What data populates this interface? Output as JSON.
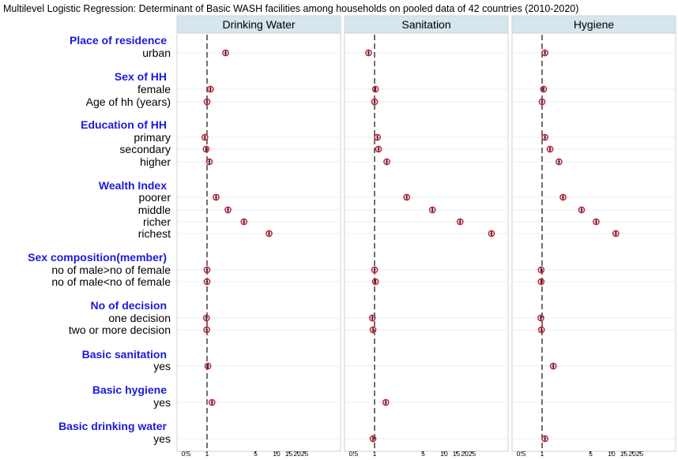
{
  "chart_data": {
    "type": "scatter",
    "title": "Multilevel Logistic Regression: Determinant of Basic WASH facilities among households on pooled data of 42 countries (2010-2020)",
    "x_scale": "log",
    "xlim": [
      0.38,
      38
    ],
    "reference_line": 1,
    "x_ticks": [
      "0.5",
      "1",
      "5",
      "10",
      "15",
      "2025"
    ],
    "panels": [
      "Drinking Water",
      "Sanitation",
      "Hygiene"
    ],
    "colors": {
      "panel_header_bg": "#d6e6ec",
      "panel_bg": "#ffffff",
      "row_line": "#e8eff4",
      "group_label": "#1a1adb",
      "point": "#d42020",
      "ci": "#1d2a6b",
      "reference_line": "#333333"
    },
    "rows": [
      {
        "type": "group",
        "label": "Place of residence"
      },
      {
        "type": "var",
        "label": "urban",
        "values": [
          1.85,
          0.82,
          1.1
        ]
      },
      {
        "type": "group",
        "label": "Sex of HH"
      },
      {
        "type": "var",
        "label": "female",
        "values": [
          1.12,
          1.03,
          1.05
        ]
      },
      {
        "type": "var",
        "label": "Age of hh (years)",
        "values": [
          1.0,
          1.0,
          1.0
        ]
      },
      {
        "type": "group",
        "label": "Education of HH"
      },
      {
        "type": "var",
        "label": "primary",
        "values": [
          0.93,
          1.1,
          1.1
        ]
      },
      {
        "type": "var",
        "label": "secondary",
        "values": [
          0.97,
          1.14,
          1.3
        ]
      },
      {
        "type": "var",
        "label": "higher",
        "values": [
          1.08,
          1.5,
          1.75
        ]
      },
      {
        "type": "group",
        "label": "Wealth Index"
      },
      {
        "type": "var",
        "label": "poorer",
        "values": [
          1.35,
          2.9,
          2.0
        ]
      },
      {
        "type": "var",
        "label": "middle",
        "values": [
          2.0,
          6.8,
          3.7
        ]
      },
      {
        "type": "var",
        "label": "richer",
        "values": [
          3.4,
          17.0,
          6.0
        ]
      },
      {
        "type": "var",
        "label": "richest",
        "values": [
          7.8,
          48.0,
          11.5
        ]
      },
      {
        "type": "group",
        "label": "Sex composition(member)"
      },
      {
        "type": "var",
        "label": "no of male>no of female",
        "values": [
          1.0,
          1.0,
          0.97
        ]
      },
      {
        "type": "var",
        "label": "no of male<no of female",
        "values": [
          1.0,
          1.03,
          0.97
        ]
      },
      {
        "type": "group",
        "label": "No of decision"
      },
      {
        "type": "var",
        "label": "one decision",
        "values": [
          0.98,
          0.93,
          0.96
        ]
      },
      {
        "type": "var",
        "label": "two or more decision",
        "values": [
          0.99,
          0.95,
          0.98
        ]
      },
      {
        "type": "group",
        "label": "Basic sanitation"
      },
      {
        "type": "var",
        "label": "yes",
        "values": [
          1.03,
          null,
          1.45
        ]
      },
      {
        "type": "group",
        "label": "Basic hygiene"
      },
      {
        "type": "var",
        "label": "yes",
        "values": [
          1.18,
          1.45,
          null
        ]
      },
      {
        "type": "group",
        "label": "Basic drinking water"
      },
      {
        "type": "var",
        "label": "yes",
        "values": [
          null,
          0.95,
          1.1
        ]
      }
    ]
  }
}
